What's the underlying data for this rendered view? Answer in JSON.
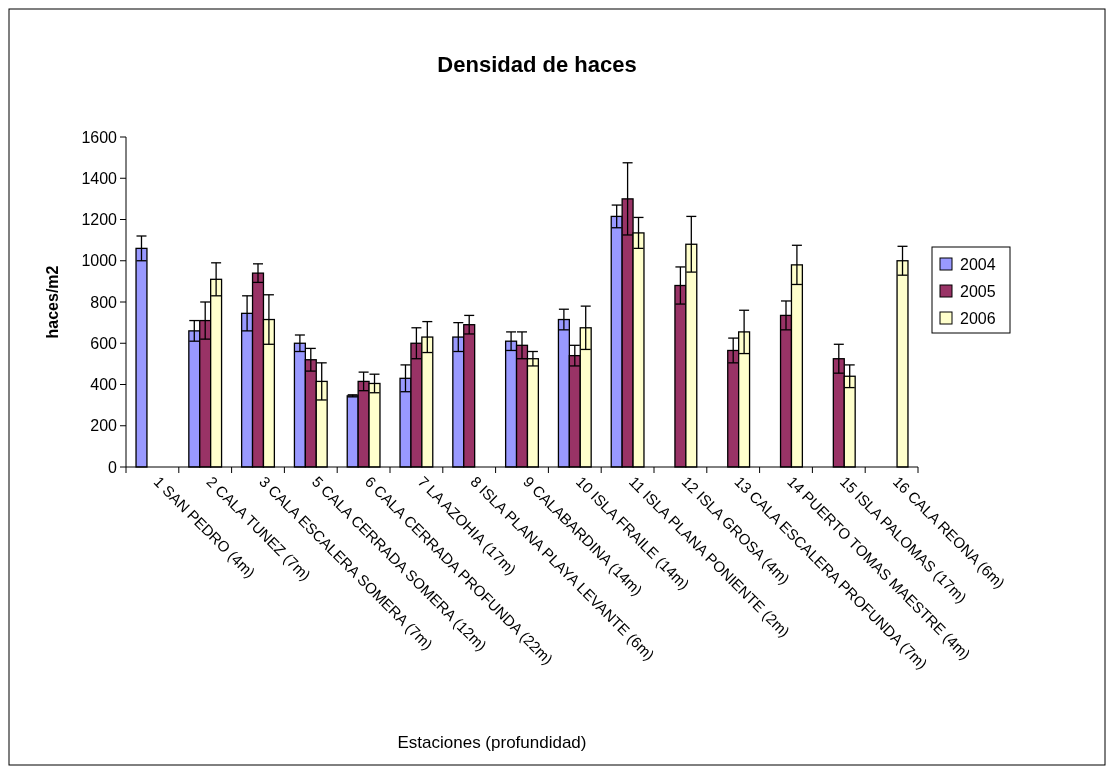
{
  "chart_data": {
    "type": "bar",
    "title": "Densidad de haces",
    "xlabel": "Estaciones (profundidad)",
    "ylabel": "haces/m2",
    "categories": [
      "1 SAN PEDRO (4m)",
      "2 CALA TUNEZ (7m)",
      "3 CALA ESCALERA SOMERA (7m)",
      "5 CALA CERRADA SOMERA (12m)",
      "6 CALA CERRADA PROFUNDA (22m)",
      "7 LA AZOHIA (17m)",
      "8 ISLA PLANA PLAYA LEVANTE (6m)",
      "9 CALABARDINA (14m)",
      "10 ISLA FRAILE (14m)",
      "11 ISLA PLANA PONIENTE (2m)",
      "12 ISLA GROSA (4m)",
      "13 CALA ESCALERA PROFUNDA (7m)",
      "14 PUERTO TOMAS MAESTRE (4m)",
      "15 ISLA PALOMAS (17m)",
      "16 CALA REONA (6m)"
    ],
    "series": [
      {
        "name": "2004",
        "color": "#9999ff",
        "values": [
          1060,
          660,
          745,
          600,
          345,
          430,
          630,
          610,
          715,
          1215,
          null,
          null,
          null,
          null,
          null
        ],
        "errors": [
          60,
          50,
          85,
          40,
          5,
          65,
          70,
          45,
          50,
          55,
          null,
          null,
          null,
          null,
          null
        ]
      },
      {
        "name": "2005",
        "color": "#993366",
        "values": [
          null,
          710,
          940,
          520,
          415,
          600,
          690,
          590,
          540,
          1300,
          880,
          565,
          735,
          525,
          null
        ],
        "errors": [
          null,
          90,
          45,
          55,
          45,
          75,
          45,
          65,
          50,
          175,
          90,
          60,
          70,
          70,
          null
        ]
      },
      {
        "name": "2006",
        "color": "#ffffcc",
        "values": [
          null,
          910,
          715,
          415,
          405,
          630,
          null,
          525,
          675,
          1135,
          1080,
          655,
          980,
          440,
          1000
        ],
        "errors": [
          null,
          80,
          120,
          90,
          45,
          75,
          null,
          35,
          105,
          75,
          135,
          105,
          95,
          55,
          70
        ]
      }
    ],
    "ylim": [
      0,
      1600
    ],
    "yticks": [
      0,
      200,
      400,
      600,
      800,
      1000,
      1200,
      1400,
      1600
    ],
    "grid": false,
    "legend": "right"
  }
}
